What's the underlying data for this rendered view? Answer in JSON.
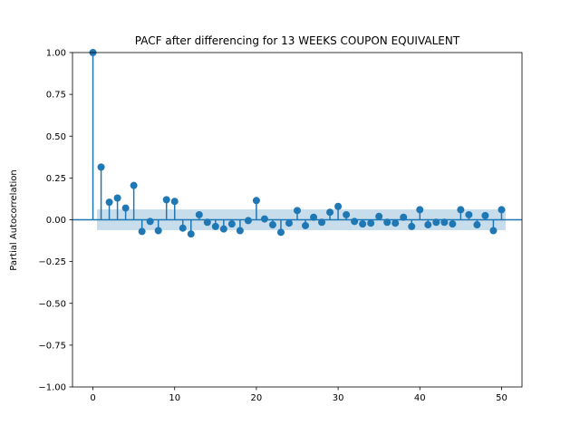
{
  "chart_data": {
    "type": "stem",
    "title": "PACF after differencing for 13 WEEKS COUPON EQUIVALENT",
    "xlabel": "",
    "ylabel": "Partial Autocorrelation",
    "xlim": [
      -2.5,
      52.5
    ],
    "ylim": [
      -1.0,
      1.0
    ],
    "xticks": [
      0,
      10,
      20,
      30,
      40,
      50
    ],
    "yticks": [
      -1.0,
      -0.75,
      -0.5,
      -0.25,
      0.0,
      0.25,
      0.5,
      0.75,
      1.0
    ],
    "xtick_labels": [
      "0",
      "10",
      "20",
      "30",
      "40",
      "50"
    ],
    "ytick_labels": [
      "−1.00",
      "−0.75",
      "−0.50",
      "−0.25",
      "0.00",
      "0.25",
      "0.50",
      "0.75",
      "1.00"
    ],
    "grid": false,
    "confidence_band": {
      "x_start": 0.5,
      "x_end": 50.5,
      "lower": -0.062,
      "upper": 0.062,
      "color": "#1f77b4",
      "opacity": 0.25
    },
    "color": "#1f77b4",
    "lags": [
      0,
      1,
      2,
      3,
      4,
      5,
      6,
      7,
      8,
      9,
      10,
      11,
      12,
      13,
      14,
      15,
      16,
      17,
      18,
      19,
      20,
      21,
      22,
      23,
      24,
      25,
      26,
      27,
      28,
      29,
      30,
      31,
      32,
      33,
      34,
      35,
      36,
      37,
      38,
      39,
      40,
      41,
      42,
      43,
      44,
      45,
      46,
      47,
      48,
      49,
      50
    ],
    "values": [
      1.0,
      0.315,
      0.105,
      0.13,
      0.07,
      0.205,
      -0.07,
      -0.01,
      -0.065,
      0.12,
      0.11,
      -0.05,
      -0.085,
      0.03,
      -0.015,
      -0.04,
      -0.055,
      -0.025,
      -0.065,
      -0.005,
      0.115,
      0.005,
      -0.03,
      -0.075,
      -0.02,
      0.055,
      -0.035,
      0.015,
      -0.015,
      0.045,
      0.08,
      0.03,
      -0.01,
      -0.025,
      -0.02,
      0.02,
      -0.015,
      -0.02,
      0.015,
      -0.04,
      0.06,
      -0.03,
      -0.015,
      -0.015,
      -0.025,
      0.06,
      0.03,
      -0.03,
      0.025,
      -0.065,
      0.06
    ]
  }
}
